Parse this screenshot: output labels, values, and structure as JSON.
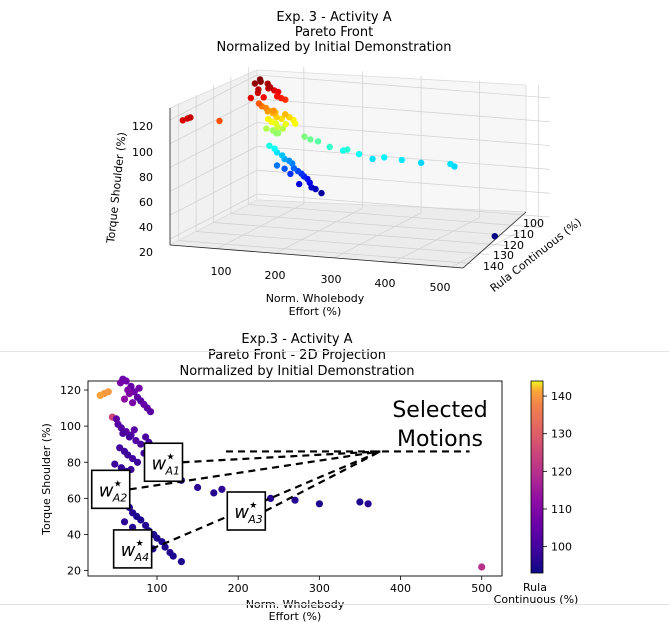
{
  "chart_data": [
    {
      "type": "scatter",
      "projection": "3d",
      "title": [
        "Exp. 3 - Activity A",
        "Pareto Front",
        "Normalized by Initial Demonstration"
      ],
      "xlabel": "Norm. Wholebody\nEffort (%)",
      "ylabel": "Rula Continuous (%)",
      "zlabel": "Torque Shoulder (%)",
      "xticks": [
        "100",
        "200",
        "300",
        "400",
        "500"
      ],
      "yticks": [
        "100",
        "110",
        "120",
        "130",
        "140"
      ],
      "zticks": [
        "20",
        "40",
        "60",
        "80",
        "100",
        "120"
      ],
      "xlim": [
        20,
        520
      ],
      "ylim": [
        95,
        145
      ],
      "zlim": [
        15,
        130
      ],
      "grid": true,
      "colormap": "jet (color encodes Torque Shoulder)",
      "points": [
        [
          35,
          140,
          118
        ],
        [
          40,
          140,
          119
        ],
        [
          30,
          141,
          117
        ],
        [
          45,
          125,
          105
        ],
        [
          55,
          108,
          124
        ],
        [
          58,
          106,
          126
        ],
        [
          62,
          107,
          125
        ],
        [
          68,
          105,
          122
        ],
        [
          72,
          106,
          119
        ],
        [
          66,
          110,
          118
        ],
        [
          76,
          104,
          116
        ],
        [
          80,
          103,
          114
        ],
        [
          60,
          112,
          115
        ],
        [
          84,
          105,
          112
        ],
        [
          88,
          104,
          110
        ],
        [
          70,
          108,
          113
        ],
        [
          78,
          107,
          121
        ],
        [
          64,
          109,
          120
        ],
        [
          92,
          103,
          108
        ],
        [
          50,
          104,
          104
        ],
        [
          52,
          103,
          101
        ],
        [
          56,
          102,
          99
        ],
        [
          62,
          103,
          97
        ],
        [
          68,
          102,
          95
        ],
        [
          72,
          103,
          98
        ],
        [
          58,
          101,
          96
        ],
        [
          66,
          100,
          94
        ],
        [
          74,
          102,
          92
        ],
        [
          80,
          101,
          90
        ],
        [
          90,
          100,
          91
        ],
        [
          86,
          101,
          94
        ],
        [
          54,
          100,
          88
        ],
        [
          60,
          100,
          86
        ],
        [
          64,
          99,
          84
        ],
        [
          70,
          100,
          82
        ],
        [
          76,
          99,
          80
        ],
        [
          84,
          100,
          85
        ],
        [
          94,
          99,
          88
        ],
        [
          100,
          100,
          86
        ],
        [
          48,
          99,
          79
        ],
        [
          56,
          98,
          77
        ],
        [
          62,
          98,
          75
        ],
        [
          68,
          99,
          76
        ],
        [
          110,
          98,
          74
        ],
        [
          120,
          98,
          72
        ],
        [
          130,
          97,
          70
        ],
        [
          150,
          97,
          66
        ],
        [
          170,
          96,
          63
        ],
        [
          180,
          97,
          65
        ],
        [
          200,
          97,
          62
        ],
        [
          220,
          96,
          58
        ],
        [
          240,
          96,
          60
        ],
        [
          270,
          96,
          59
        ],
        [
          300,
          95,
          57
        ],
        [
          350,
          95,
          58
        ],
        [
          360,
          96,
          57
        ],
        [
          50,
          98,
          64
        ],
        [
          56,
          97,
          61
        ],
        [
          60,
          97,
          58
        ],
        [
          66,
          96,
          55
        ],
        [
          70,
          96,
          52
        ],
        [
          75,
          95,
          50
        ],
        [
          80,
          95,
          48
        ],
        [
          86,
          96,
          45
        ],
        [
          90,
          95,
          42
        ],
        [
          96,
          95,
          40
        ],
        [
          100,
          95,
          38
        ],
        [
          106,
          95,
          36
        ],
        [
          110,
          95,
          33
        ],
        [
          116,
          96,
          30
        ],
        [
          60,
          97,
          47
        ],
        [
          70,
          96,
          44
        ],
        [
          80,
          96,
          40
        ],
        [
          95,
          96,
          32
        ],
        [
          120,
          95,
          28
        ],
        [
          130,
          95,
          25
        ],
        [
          500,
          120,
          22
        ]
      ]
    },
    {
      "type": "scatter",
      "title": [
        "Exp.3 - Activity A",
        "Pareto Front - 2D Projection",
        "Normalized by Initial Demonstration"
      ],
      "xlabel": "Norm. Wholebody\nEffort (%)",
      "ylabel": "Torque Shoulder (%)",
      "xticks": [
        "100",
        "200",
        "300",
        "400",
        "500"
      ],
      "yticks": [
        "20",
        "40",
        "60",
        "80",
        "100",
        "120"
      ],
      "xlim": [
        15,
        525
      ],
      "ylim": [
        17,
        125
      ],
      "colorbar": {
        "label": "Rula\nContinuous (%)",
        "ticks": [
          "100",
          "110",
          "120",
          "130",
          "140"
        ],
        "range": [
          93,
          144
        ]
      },
      "annotation_text": "Selected\nMotions",
      "annotation_point": [
        375,
        86
      ],
      "selected": [
        {
          "label_base": "w",
          "label_sup": "★",
          "label_sub": "A1",
          "at": [
            108,
            80
          ]
        },
        {
          "label_base": "w",
          "label_sup": "★",
          "label_sub": "A2",
          "at": [
            43,
            65
          ]
        },
        {
          "label_base": "w",
          "label_sup": "★",
          "label_sub": "A3",
          "at": [
            210,
            53
          ]
        },
        {
          "label_base": "w",
          "label_sup": "★",
          "label_sub": "A4",
          "at": [
            70,
            32
          ]
        }
      ]
    }
  ]
}
